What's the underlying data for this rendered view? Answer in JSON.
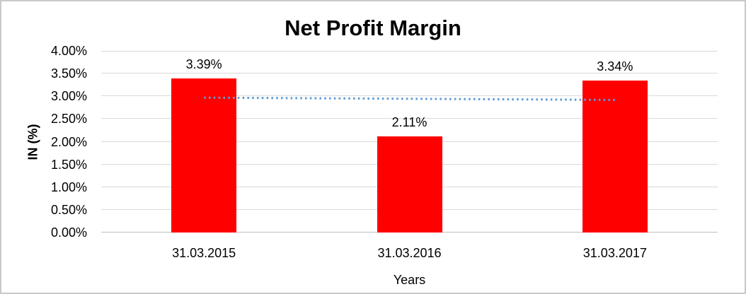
{
  "chart_data": {
    "type": "bar",
    "title": "Net Profit Margin",
    "xlabel": "Years",
    "ylabel": "IN (%)",
    "categories": [
      "31.03.2015",
      "31.03.2016",
      "31.03.2017"
    ],
    "values": [
      3.39,
      2.11,
      3.34
    ],
    "data_labels": [
      "3.39%",
      "2.11%",
      "3.34%"
    ],
    "ylim": [
      0,
      4
    ],
    "ytick_step": 0.5,
    "ytick_labels": [
      "0.00%",
      "0.50%",
      "1.00%",
      "1.50%",
      "2.00%",
      "2.50%",
      "3.00%",
      "3.50%",
      "4.00%"
    ],
    "grid": true,
    "legend": "none",
    "trendline": {
      "style": "dotted",
      "color": "#5B9BD5",
      "start_value": 2.97,
      "end_value": 2.92
    },
    "colors": {
      "bar": "#FF0000",
      "gridline": "#D9D9D9",
      "axis_line": "#BFBFBF",
      "text": "#000000",
      "background": "#FFFFFF",
      "chart_border": "#C9C9C9"
    }
  }
}
